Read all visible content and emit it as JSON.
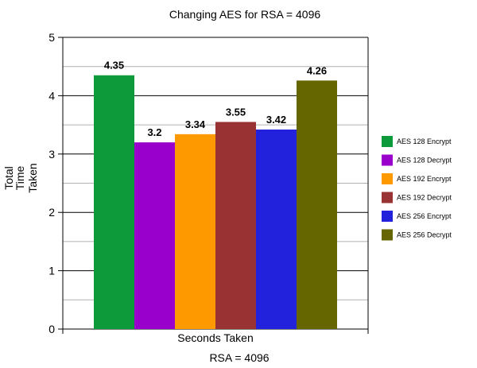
{
  "chart_data": {
    "type": "bar",
    "title": "Changing AES for RSA = 4096",
    "xlabel": "Seconds Taken",
    "ylabel_lines": [
      "Total",
      "Time",
      "Taken"
    ],
    "footer": "RSA = 4096",
    "categories": [
      "Seconds Taken"
    ],
    "ylim": [
      0,
      5
    ],
    "yticks": [
      0,
      1,
      2,
      3,
      4,
      5
    ],
    "grid": true,
    "legend_position": "right",
    "series": [
      {
        "name": "AES 128 Encrypt",
        "value": 4.35,
        "label": "4.35",
        "color": "#0c9a3b"
      },
      {
        "name": "AES 128 Decrypt",
        "value": 3.2,
        "label": "3.2",
        "color": "#9900cc"
      },
      {
        "name": "AES 192 Encrypt",
        "value": 3.34,
        "label": "3.34",
        "color": "#ff9900"
      },
      {
        "name": "AES 192 Decrypt",
        "value": 3.55,
        "label": "3.55",
        "color": "#993333"
      },
      {
        "name": "AES 256 Encrypt",
        "value": 3.42,
        "label": "3.42",
        "color": "#2222dd"
      },
      {
        "name": "AES 256 Decrypt",
        "value": 4.26,
        "label": "4.26",
        "color": "#666600"
      }
    ]
  }
}
